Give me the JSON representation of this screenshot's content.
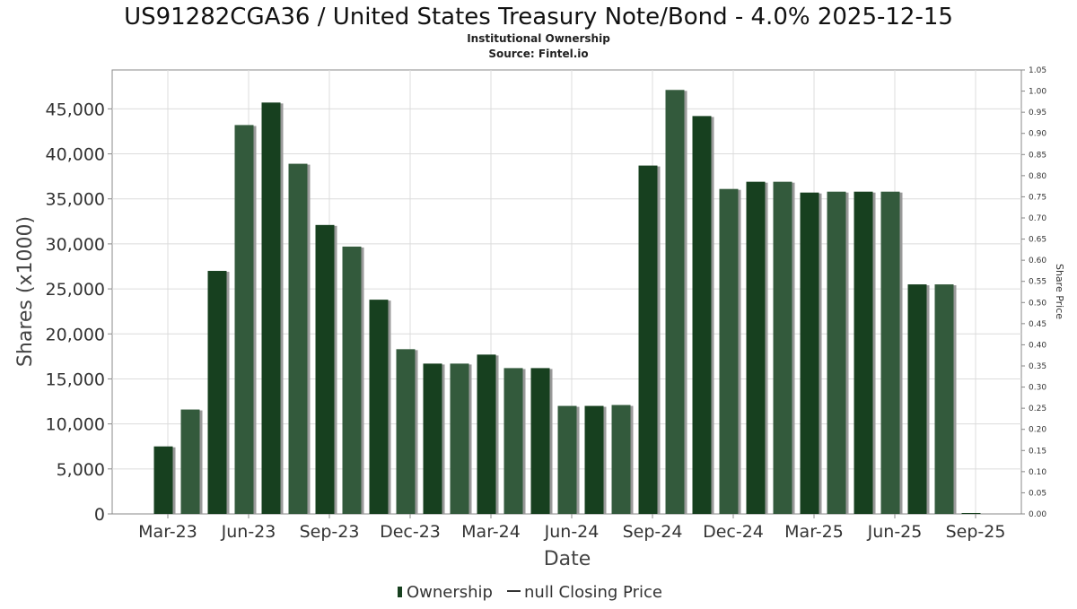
{
  "chart_data": {
    "type": "bar",
    "title": "US91282CGA36 / United States Treasury Note/Bond - 4.0% 2025-12-15",
    "subtitle": "Institutional Ownership",
    "source": "Source: Fintel.io",
    "xlabel": "Date",
    "ylabel": "Shares (x1000)",
    "y2label": "Share Price",
    "ylim": [
      0,
      49320
    ],
    "y2lim": [
      0,
      1.05
    ],
    "y_ticks": [
      0,
      5000,
      10000,
      15000,
      20000,
      25000,
      30000,
      35000,
      40000,
      45000
    ],
    "y_tick_labels": [
      "0",
      "5,000",
      "10,000",
      "15,000",
      "20,000",
      "25,000",
      "30,000",
      "35,000",
      "40,000",
      "45,000"
    ],
    "y2_ticks": [
      0,
      0.05,
      0.1,
      0.15,
      0.2,
      0.25,
      0.3,
      0.35,
      0.4,
      0.45,
      0.5,
      0.55,
      0.6,
      0.65,
      0.7,
      0.75,
      0.8,
      0.85,
      0.9,
      0.95,
      1.0,
      1.05
    ],
    "y2_tick_labels": [
      "0.00",
      "0.05",
      "0.10",
      "0.15",
      "0.20",
      "0.25",
      "0.30",
      "0.35",
      "0.40",
      "0.45",
      "0.50",
      "0.55",
      "0.60",
      "0.65",
      "0.70",
      "0.75",
      "0.80",
      "0.85",
      "0.90",
      "0.95",
      "1.00",
      "1.05"
    ],
    "x_tick_labels": [
      "Mar-23",
      "Jun-23",
      "Sep-23",
      "Dec-23",
      "Mar-24",
      "Jun-24",
      "Sep-24",
      "Dec-24",
      "Mar-25",
      "Jun-25",
      "Sep-25"
    ],
    "grid": true,
    "legend_position": "bottom",
    "legend": [
      {
        "label": "Ownership",
        "marker": "bar"
      },
      {
        "label": "null Closing Price",
        "marker": "line"
      }
    ],
    "series": [
      {
        "name": "Ownership",
        "values": [
          7500,
          11600,
          27000,
          43200,
          45700,
          38900,
          32100,
          29700,
          23800,
          18300,
          16700,
          16700,
          17700,
          16200,
          16200,
          12000,
          12000,
          12100,
          38700,
          47100,
          44200,
          36100,
          36900,
          36900,
          35700,
          35800,
          35800,
          35800,
          25500,
          25500,
          100
        ]
      }
    ],
    "colors": {
      "bar_dark": "#17401f",
      "bar_light": "#335a3c",
      "bar_shadow": "#9a9a9a",
      "grid": "#dcdcdc",
      "axis": "#888888",
      "text": "#333333"
    }
  }
}
